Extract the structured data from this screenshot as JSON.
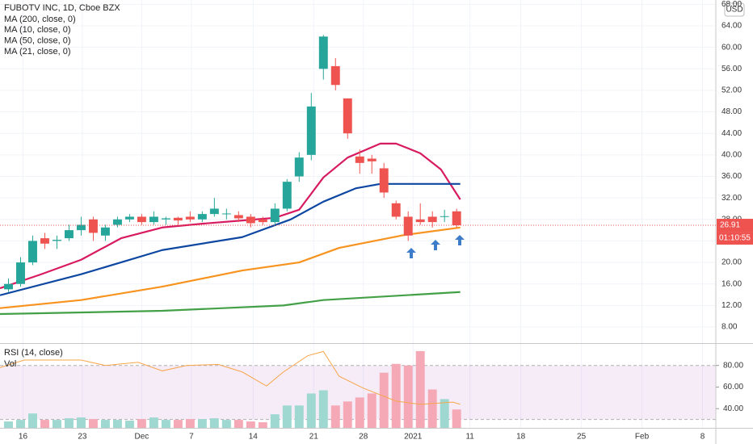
{
  "chart_data": {
    "type": "candlestick",
    "title": "FUBOTV INC, 1D, Cboe BZX",
    "currency": "USD",
    "countdown": "01:10:55",
    "open": [
      15,
      16,
      20,
      24.5,
      24,
      24.5,
      26,
      28,
      25,
      27,
      28,
      28.5,
      27.5,
      28,
      28.3,
      28.5,
      28,
      29,
      29,
      28.8,
      28.5,
      28,
      27.5,
      30,
      36,
      40,
      56,
      56.5,
      50.5,
      39.7,
      39.3,
      37.5,
      31,
      28.5,
      28,
      28.5,
      28.5,
      29.5
    ],
    "high": [
      17,
      21,
      25,
      25.5,
      25,
      27,
      28.5,
      28.5,
      27,
      28.5,
      29,
      29,
      29.5,
      28.5,
      28.5,
      29.5,
      29.5,
      32,
      30,
      29.5,
      29,
      28.5,
      31,
      35.5,
      40.5,
      51.5,
      62.3,
      58,
      50.5,
      41,
      40,
      38.5,
      31.5,
      29.5,
      31,
      29.5,
      29.8,
      30
    ],
    "low": [
      14.5,
      15.5,
      19.5,
      22.5,
      22.5,
      24,
      25,
      24,
      24,
      26.5,
      27.5,
      27,
      27,
      27,
      27,
      27.5,
      27.5,
      28.5,
      28,
      27.5,
      26.5,
      27,
      27,
      29.5,
      35,
      39,
      54,
      52,
      43,
      36.5,
      36.5,
      32,
      28,
      24,
      27,
      26.5,
      27.5,
      26.5
    ],
    "close": [
      16,
      20,
      24,
      23.5,
      24.2,
      26,
      27,
      25.5,
      26.5,
      28,
      28.5,
      27.5,
      28.5,
      28.2,
      27.8,
      28,
      29,
      30,
      29.1,
      28.2,
      27.3,
      27.5,
      30,
      35,
      39.5,
      49,
      62,
      53,
      44,
      38.5,
      38.8,
      33,
      28.5,
      25,
      27.5,
      27.5,
      28.6,
      26.91
    ],
    "up_color": "#26a69a",
    "down_color": "#ef5350",
    "grid": true,
    "xlim": [
      -0.7,
      58.4
    ],
    "xticks": [
      {
        "value": 1.2,
        "label": "16"
      },
      {
        "value": 6.1,
        "label": "23"
      },
      {
        "value": 11,
        "label": "Dec"
      },
      {
        "value": 15.1,
        "label": "7"
      },
      {
        "value": 20.2,
        "label": "14"
      },
      {
        "value": 25.2,
        "label": "21"
      },
      {
        "value": 29.3,
        "label": "28"
      },
      {
        "value": 33.4,
        "label": "2021"
      },
      {
        "value": 38.1,
        "label": "11"
      },
      {
        "value": 42.3,
        "label": "18"
      },
      {
        "value": 47.3,
        "label": "25"
      },
      {
        "value": 52.3,
        "label": "Feb"
      },
      {
        "value": 57.3,
        "label": "8"
      }
    ],
    "ylim": [
      5,
      68.8
    ],
    "yticks": [
      {
        "value": 8,
        "label": "8.00"
      },
      {
        "value": 12,
        "label": "12.00"
      },
      {
        "value": 16,
        "label": "16.00"
      },
      {
        "value": 20,
        "label": "20.00"
      },
      {
        "value": 24,
        "label": "24.00"
      },
      {
        "value": 28,
        "label": "28.00"
      },
      {
        "value": 32,
        "label": "32.00"
      },
      {
        "value": 36,
        "label": "36.00"
      },
      {
        "value": 40,
        "label": "40.00"
      },
      {
        "value": 44,
        "label": "44.00"
      },
      {
        "value": 48,
        "label": "48.00"
      },
      {
        "value": 52,
        "label": "52.00"
      },
      {
        "value": 56,
        "label": "56.00"
      },
      {
        "value": 60,
        "label": "60.00"
      },
      {
        "value": 64,
        "label": "64.00"
      },
      {
        "value": 68,
        "label": "68.00"
      }
    ],
    "series": [
      {
        "name": "MA (200, close, 0)",
        "color": "#43a047",
        "x": [
          -0.7,
          12.7,
          22.7,
          26,
          37.3
        ],
        "values": [
          10.4,
          11,
          12,
          13,
          14.5
        ]
      },
      {
        "name": "MA (10, close, 0)",
        "color": "#d81b60",
        "x": [
          -0.7,
          2.7,
          6,
          9.3,
          12.7,
          16,
          19.3,
          22,
          24,
          26,
          28,
          30.7,
          32,
          34,
          35.7,
          37.3
        ],
        "values": [
          15.2,
          17.8,
          20.5,
          24.5,
          26.5,
          27.2,
          27.8,
          28.3,
          29.8,
          35.8,
          39.5,
          42.1,
          42.1,
          40.3,
          37.3,
          31.7
        ]
      },
      {
        "name": "MA (50, close, 0)",
        "color": "#f7931e",
        "x": [
          -0.7,
          6,
          12.7,
          19.3,
          24,
          27.3,
          32.7,
          37.3
        ],
        "values": [
          11.5,
          13,
          15.5,
          18.5,
          20,
          22.7,
          25.1,
          26.5
        ]
      },
      {
        "name": "MA (21, close, 0)",
        "color": "#0d47a1",
        "x": [
          -0.7,
          6,
          12.7,
          19.3,
          23.3,
          26,
          28.7,
          30.7,
          34,
          37.3
        ],
        "values": [
          13.9,
          17.8,
          22.3,
          24.7,
          28,
          31.3,
          33.8,
          34.6,
          34.6,
          34.6
        ]
      }
    ],
    "rsi": {
      "label": "RSI (14, close)",
      "color": "#f7a54a",
      "x": [
        -0.7,
        1.3,
        6,
        8,
        10.7,
        12.7,
        14.7,
        17.3,
        19.3,
        21.3,
        22.7,
        24.7,
        26,
        27.3,
        29.3,
        32,
        34,
        36.7,
        37.3
      ],
      "values": [
        78,
        85,
        85,
        80,
        83,
        75,
        80,
        81,
        74,
        61,
        74,
        89,
        93,
        70,
        59,
        47,
        44,
        46,
        44
      ],
      "ylim": [
        22.2,
        100
      ],
      "yticks": [
        {
          "value": 80,
          "label": "80.00"
        },
        {
          "value": 60,
          "label": "60.00"
        },
        {
          "value": 40,
          "label": "40.00"
        }
      ],
      "band": [
        30,
        80
      ]
    },
    "volume": {
      "label": "Vol",
      "ylim": [
        0,
        105
      ],
      "up_color": "#9fd8d1",
      "down_color": "#f5a9b6",
      "values": [
        8,
        10,
        18,
        10,
        10,
        12,
        13,
        11,
        10,
        10,
        9,
        11,
        13,
        10,
        10,
        11,
        11,
        12,
        10,
        10,
        8,
        7,
        17,
        28,
        28,
        43,
        47,
        28,
        33,
        38,
        43,
        69,
        80,
        78,
        96,
        48,
        36,
        23
      ]
    }
  }
}
